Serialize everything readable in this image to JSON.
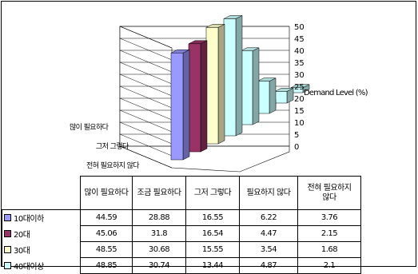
{
  "chart_data": {
    "type": "bar",
    "subtype": "3d-clustered-column",
    "categories": [
      "많이 필요하다",
      "조금 필요하다",
      "그저 그렇다",
      "필요하지 않다",
      "전혀 필요하지 않다"
    ],
    "depth_labels": [
      "많이 필요하다",
      "그저 그렇다",
      "전혀 필요하지 않다"
    ],
    "series": [
      {
        "name": "10대이하",
        "values": [
          44.59,
          28.88,
          16.55,
          6.22,
          3.76
        ],
        "color": "#9999ff"
      },
      {
        "name": "20대",
        "values": [
          45.06,
          31.8,
          16.54,
          4.47,
          2.15
        ],
        "color": "#993366"
      },
      {
        "name": "30대",
        "values": [
          48.55,
          30.68,
          15.55,
          3.54,
          1.68
        ],
        "color": "#ffffcc"
      },
      {
        "name": "40대이상",
        "values": [
          48.85,
          30.74,
          13.44,
          4.87,
          2.1
        ],
        "color": "#ccffff"
      }
    ],
    "zlabel": "Demand Level (%)",
    "zlim": [
      0,
      50
    ],
    "ticks": [
      "0",
      "5",
      "10",
      "15",
      "20",
      "25",
      "30",
      "35",
      "40",
      "45",
      "50"
    ],
    "grid": true,
    "legend": "table"
  },
  "table": {
    "headers": [
      "많이 필요하다",
      "조금 필요하다",
      "그저 그렇다",
      "필요하지 않다",
      "전혀 필요하지\n않다"
    ],
    "rows": [
      {
        "label": "10대이하",
        "cells": [
          "44.59",
          "28.88",
          "16.55",
          "6.22",
          "3.76"
        ]
      },
      {
        "label": "20대",
        "cells": [
          "45.06",
          "31.8",
          "16.54",
          "4.47",
          "2.15"
        ]
      },
      {
        "label": "30대",
        "cells": [
          "48.55",
          "30.68",
          "15.55",
          "3.54",
          "1.68"
        ]
      },
      {
        "label": "40대이상",
        "cells": [
          "48.85",
          "30.74",
          "13.44",
          "4.87",
          "2.1"
        ]
      }
    ]
  }
}
